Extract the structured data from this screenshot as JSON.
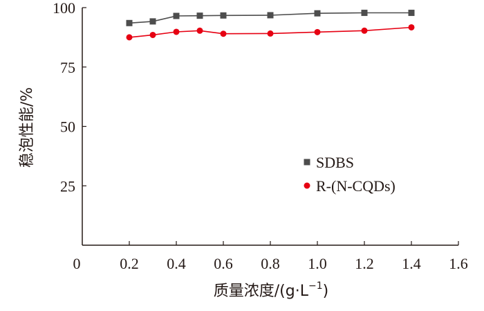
{
  "chart_data": {
    "type": "line",
    "xlabel": "质量浓度/(g·L",
    "xlabel_sup": "−1",
    "xlabel_close": ")",
    "ylabel": "稳泡性能/%",
    "xlim": [
      0,
      1.6
    ],
    "ylim": [
      0,
      100
    ],
    "xticks": [
      0,
      0.2,
      0.4,
      0.6,
      0.8,
      1.0,
      1.2,
      1.4,
      1.6
    ],
    "xtick_labels": [
      "0",
      "0.2",
      "0.4",
      "0.6",
      "0.8",
      "1.0",
      "1.2",
      "1.4",
      "1.6"
    ],
    "yticks": [
      25,
      50,
      75,
      100
    ],
    "ytick_labels": [
      "25",
      "50",
      "75",
      "100"
    ],
    "grid": false,
    "legend_position": "right",
    "series": [
      {
        "name": "SDBS",
        "marker": "square",
        "color": "#4d4d4d",
        "x": [
          0.2,
          0.3,
          0.4,
          0.5,
          0.6,
          0.8,
          1.0,
          1.2,
          1.4
        ],
        "y": [
          93.5,
          94.2,
          96.5,
          96.6,
          96.7,
          96.8,
          97.6,
          97.8,
          97.8
        ]
      },
      {
        "name": "R-(N-CQDs)",
        "marker": "circle",
        "color": "#e60012",
        "x": [
          0.2,
          0.3,
          0.4,
          0.5,
          0.6,
          0.8,
          1.0,
          1.2,
          1.4
        ],
        "y": [
          87.5,
          88.5,
          89.8,
          90.3,
          89.0,
          89.1,
          89.7,
          90.3,
          91.7
        ]
      }
    ]
  }
}
